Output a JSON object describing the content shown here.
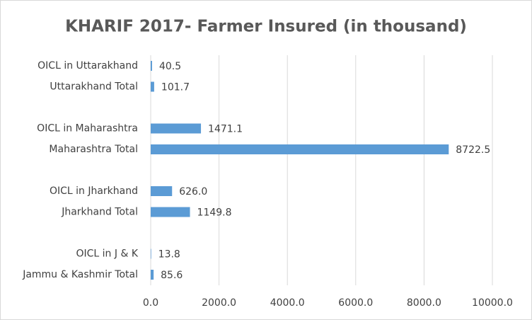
{
  "chart_data": {
    "type": "bar",
    "orientation": "horizontal",
    "title": "KHARIF 2017- Farmer Insured (in thousand)",
    "categories": [
      "OICL in Uttarakhand",
      "Uttarakhand Total",
      null,
      "OICL in Maharashtra",
      "Maharashtra Total",
      null,
      "OICL in Jharkhand",
      "Jharkhand Total",
      null,
      "OICL in J & K",
      "Jammu & Kashmir Total"
    ],
    "values": [
      40.5,
      101.7,
      null,
      1471.1,
      8722.5,
      null,
      626.0,
      1149.8,
      null,
      13.8,
      85.6
    ],
    "value_labels": [
      "40.5",
      "101.7",
      null,
      "1471.1",
      "8722.5",
      null,
      "626.0",
      "1149.8",
      null,
      "13.8",
      "85.6"
    ],
    "color": "#5b9bd5",
    "xlim": [
      0,
      10000
    ],
    "xticks": [
      {
        "value": 0,
        "label": "0.0"
      },
      {
        "value": 2000,
        "label": "2000.0"
      },
      {
        "value": 4000,
        "label": "4000.0"
      },
      {
        "value": 6000,
        "label": "6000.0"
      },
      {
        "value": 8000,
        "label": "8000.0"
      },
      {
        "value": 10000,
        "label": "10000.0"
      }
    ],
    "grid": true
  }
}
